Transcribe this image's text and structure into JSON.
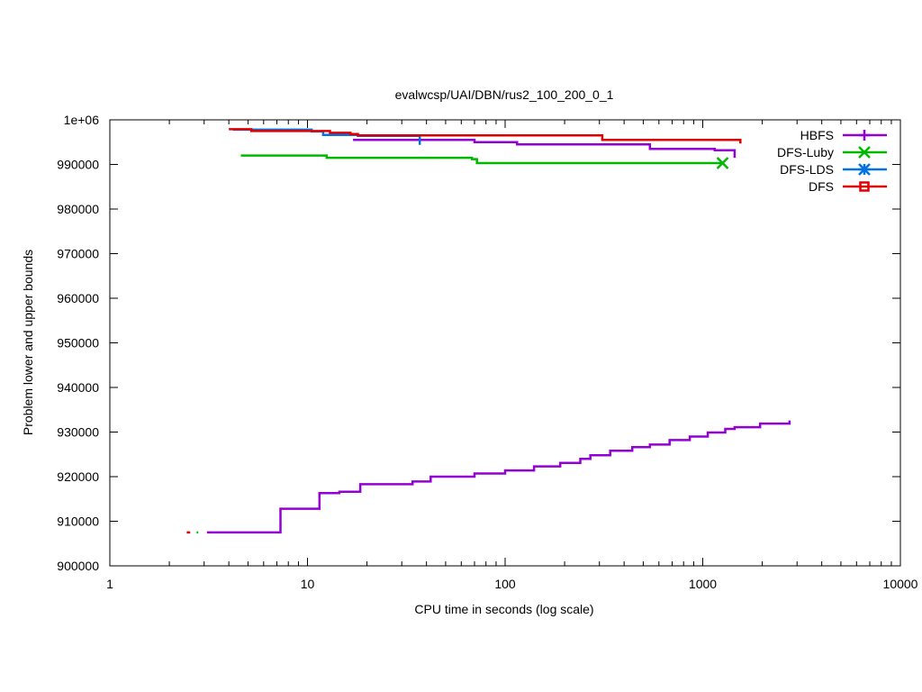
{
  "chart_data": {
    "type": "line",
    "title": "evalwcsp/UAI/DBN/rus2_100_200_0_1",
    "xlabel": "CPU time in seconds (log scale)",
    "ylabel": "Problem lower and upper bounds",
    "x_scale": "log",
    "xlim": [
      1,
      10000
    ],
    "ylim": [
      900000,
      1000000
    ],
    "x_ticks": [
      {
        "value": 1,
        "label": "1"
      },
      {
        "value": 10,
        "label": "10"
      },
      {
        "value": 100,
        "label": "100"
      },
      {
        "value": 1000,
        "label": "1000"
      },
      {
        "value": 10000,
        "label": "10000"
      }
    ],
    "y_ticks": [
      {
        "value": 900000,
        "label": "900000"
      },
      {
        "value": 910000,
        "label": "910000"
      },
      {
        "value": 920000,
        "label": "920000"
      },
      {
        "value": 930000,
        "label": "930000"
      },
      {
        "value": 940000,
        "label": "940000"
      },
      {
        "value": 950000,
        "label": "950000"
      },
      {
        "value": 960000,
        "label": "960000"
      },
      {
        "value": 970000,
        "label": "970000"
      },
      {
        "value": 980000,
        "label": "980000"
      },
      {
        "value": 990000,
        "label": "990000"
      },
      {
        "value": 1000000,
        "label": "1e+06"
      }
    ],
    "grid": false,
    "legend_position": "top-right",
    "series": [
      {
        "name": "HBFS",
        "color": "#9400d3",
        "marker": "plus",
        "lines": [
          {
            "points": [
              [
                17,
                995500
              ],
              [
                70,
                995500
              ],
              [
                70,
                995000
              ],
              [
                115,
                995000
              ],
              [
                115,
                994500
              ],
              [
                540,
                994500
              ],
              [
                540,
                993500
              ],
              [
                1150,
                993500
              ],
              [
                1150,
                993200
              ],
              [
                1450,
                993200
              ],
              [
                1450,
                991500
              ]
            ]
          },
          {
            "points": [
              [
                3.1,
                907500
              ],
              [
                7.3,
                907500
              ],
              [
                7.3,
                912800
              ],
              [
                11.5,
                912800
              ],
              [
                11.5,
                916300
              ],
              [
                14.5,
                916300
              ],
              [
                14.5,
                916600
              ],
              [
                18.5,
                916600
              ],
              [
                18.5,
                918300
              ],
              [
                34,
                918300
              ],
              [
                34,
                918900
              ],
              [
                42,
                918900
              ],
              [
                42,
                920000
              ],
              [
                70,
                920000
              ],
              [
                70,
                920700
              ],
              [
                100,
                920700
              ],
              [
                100,
                921400
              ],
              [
                140,
                921400
              ],
              [
                140,
                922300
              ],
              [
                190,
                922300
              ],
              [
                190,
                923100
              ],
              [
                240,
                923100
              ],
              [
                240,
                924000
              ],
              [
                270,
                924000
              ],
              [
                270,
                924800
              ],
              [
                340,
                924800
              ],
              [
                340,
                925800
              ],
              [
                440,
                925800
              ],
              [
                440,
                926600
              ],
              [
                540,
                926600
              ],
              [
                540,
                927200
              ],
              [
                680,
                927200
              ],
              [
                680,
                928200
              ],
              [
                860,
                928200
              ],
              [
                860,
                929000
              ],
              [
                1060,
                929000
              ],
              [
                1060,
                929900
              ],
              [
                1300,
                929900
              ],
              [
                1300,
                930700
              ],
              [
                1450,
                930700
              ],
              [
                1450,
                931100
              ],
              [
                1950,
                931100
              ],
              [
                1950,
                931900
              ],
              [
                2750,
                931900
              ],
              [
                2750,
                932600
              ]
            ]
          }
        ]
      },
      {
        "name": "DFS-Luby",
        "color": "#00b800",
        "marker": "x",
        "lines": [
          {
            "points": [
              [
                4.6,
                992000
              ],
              [
                12.5,
                992000
              ],
              [
                12.5,
                991500
              ],
              [
                68,
                991500
              ],
              [
                68,
                991200
              ],
              [
                72,
                991200
              ],
              [
                72,
                990300
              ],
              [
                1260,
                990300
              ]
            ],
            "end_marker": true
          },
          {
            "points": [
              [
                2.75,
                907500
              ],
              [
                2.8,
                907500
              ]
            ]
          }
        ]
      },
      {
        "name": "DFS-LDS",
        "color": "#0072e6",
        "marker": "star",
        "lines": [
          {
            "points": [
              [
                4.2,
                997800
              ],
              [
                10.5,
                997800
              ],
              [
                10.5,
                997400
              ],
              [
                12,
                997400
              ],
              [
                12,
                996600
              ],
              [
                18,
                996600
              ],
              [
                18,
                996400
              ],
              [
                37,
                996400
              ],
              [
                37,
                994400
              ]
            ]
          }
        ]
      },
      {
        "name": "DFS",
        "color": "#e00000",
        "marker": "square",
        "lines": [
          {
            "points": [
              [
                4.0,
                997900
              ],
              [
                5.2,
                997900
              ],
              [
                5.2,
                997500
              ],
              [
                13,
                997500
              ],
              [
                13,
                997100
              ],
              [
                16.5,
                997100
              ],
              [
                16.5,
                996800
              ],
              [
                18,
                996800
              ],
              [
                18,
                996500
              ],
              [
                310,
                996500
              ],
              [
                310,
                995500
              ],
              [
                1550,
                995500
              ],
              [
                1550,
                994700
              ]
            ]
          },
          {
            "points": [
              [
                2.45,
                907500
              ],
              [
                2.55,
                907500
              ]
            ]
          }
        ]
      }
    ]
  }
}
